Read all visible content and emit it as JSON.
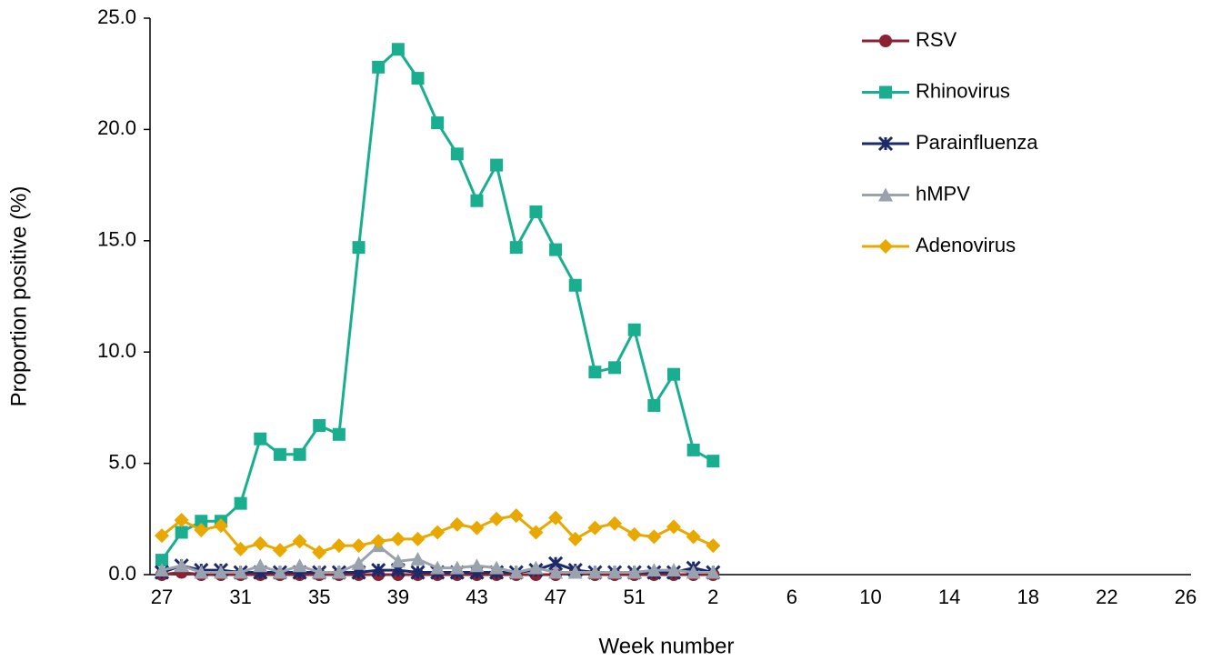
{
  "chart_data": {
    "type": "line",
    "x_label": "Week number",
    "y_label": "Proportion positive (%)",
    "categories": [
      "27",
      null,
      null,
      null,
      "31",
      null,
      null,
      null,
      "35",
      null,
      null,
      null,
      "39",
      null,
      null,
      null,
      "43",
      null,
      null,
      null,
      "47",
      null,
      null,
      null,
      "51",
      null,
      null,
      null,
      "2",
      null,
      null,
      null,
      "6",
      null,
      null,
      null,
      "10",
      null,
      null,
      null,
      "14",
      null,
      null,
      null,
      "18",
      null,
      null,
      null,
      "22",
      null,
      null,
      null,
      "26"
    ],
    "ylim": [
      0,
      25
    ],
    "yticks": [
      {
        "value": 0,
        "label": "0.0"
      },
      {
        "value": 5,
        "label": "5.0"
      },
      {
        "value": 10,
        "label": "10.0"
      },
      {
        "value": 15,
        "label": "15.0"
      },
      {
        "value": 20,
        "label": "20.0"
      },
      {
        "value": 25,
        "label": "25.0"
      }
    ],
    "legend": "top-right",
    "series": [
      {
        "name": "RSV",
        "color": "#8b2232",
        "marker": "circle",
        "values": [
          0.0,
          0.1,
          0.0,
          0.0,
          0.0,
          0.0,
          0.0,
          0.0,
          0.0,
          0.0,
          0.0,
          0.0,
          0.0,
          0.0,
          0.0,
          0.0,
          0.0,
          0.0,
          0.0,
          0.0,
          0.0,
          0.1,
          0.0,
          0.0,
          0.0,
          0.0,
          0.0,
          0.0,
          0.0,
          null,
          null,
          null,
          null,
          null,
          null,
          null,
          null,
          null,
          null,
          null,
          null,
          null,
          null,
          null,
          null,
          null,
          null,
          null,
          null,
          null,
          null,
          null,
          null
        ]
      },
      {
        "name": "Rhinovirus",
        "color": "#1aae91",
        "marker": "square",
        "values": [
          0.65,
          1.9,
          2.4,
          2.4,
          3.2,
          6.1,
          5.4,
          5.4,
          6.7,
          6.3,
          14.7,
          22.8,
          23.6,
          22.3,
          20.3,
          18.9,
          16.8,
          18.4,
          14.7,
          16.3,
          14.6,
          13.0,
          9.1,
          9.3,
          11.0,
          7.6,
          9.0,
          5.6,
          5.1,
          null,
          null,
          null,
          null,
          null,
          null,
          null,
          null,
          null,
          null,
          null,
          null,
          null,
          null,
          null,
          null,
          null,
          null,
          null,
          null,
          null,
          null,
          null,
          null
        ]
      },
      {
        "name": "Parainfluenza",
        "color": "#1a2a6c",
        "marker": "star",
        "values": [
          0.1,
          0.4,
          0.2,
          0.2,
          0.1,
          0.1,
          0.1,
          0.1,
          0.1,
          0.1,
          0.1,
          0.2,
          0.2,
          0.1,
          0.1,
          0.1,
          0.1,
          0.1,
          0.1,
          0.2,
          0.5,
          0.2,
          0.1,
          0.1,
          0.1,
          0.1,
          0.1,
          0.3,
          0.1,
          null,
          null,
          null,
          null,
          null,
          null,
          null,
          null,
          null,
          null,
          null,
          null,
          null,
          null,
          null,
          null,
          null,
          null,
          null,
          null,
          null,
          null,
          null,
          null
        ]
      },
      {
        "name": "hMPV",
        "color": "#9aa3ad",
        "marker": "triangle",
        "values": [
          0.2,
          0.4,
          0.1,
          0.1,
          0.1,
          0.4,
          0.1,
          0.4,
          0.1,
          0.1,
          0.5,
          1.3,
          0.6,
          0.7,
          0.3,
          0.3,
          0.4,
          0.3,
          0.1,
          0.3,
          0.1,
          0.1,
          0.1,
          0.1,
          0.1,
          0.2,
          0.2,
          0.1,
          0.1,
          null,
          null,
          null,
          null,
          null,
          null,
          null,
          null,
          null,
          null,
          null,
          null,
          null,
          null,
          null,
          null,
          null,
          null,
          null,
          null,
          null,
          null,
          null,
          null
        ]
      },
      {
        "name": "Adenovirus",
        "color": "#e8a800",
        "marker": "diamond",
        "values": [
          1.75,
          2.45,
          2.0,
          2.2,
          1.15,
          1.4,
          1.1,
          1.5,
          1.0,
          1.3,
          1.3,
          1.5,
          1.6,
          1.6,
          1.9,
          2.25,
          2.1,
          2.5,
          2.65,
          1.9,
          2.55,
          1.6,
          2.1,
          2.3,
          1.8,
          1.7,
          2.15,
          1.7,
          1.3,
          null,
          null,
          null,
          null,
          null,
          null,
          null,
          null,
          null,
          null,
          null,
          null,
          null,
          null,
          null,
          null,
          null,
          null,
          null,
          null,
          null,
          null,
          null,
          null
        ]
      }
    ]
  }
}
